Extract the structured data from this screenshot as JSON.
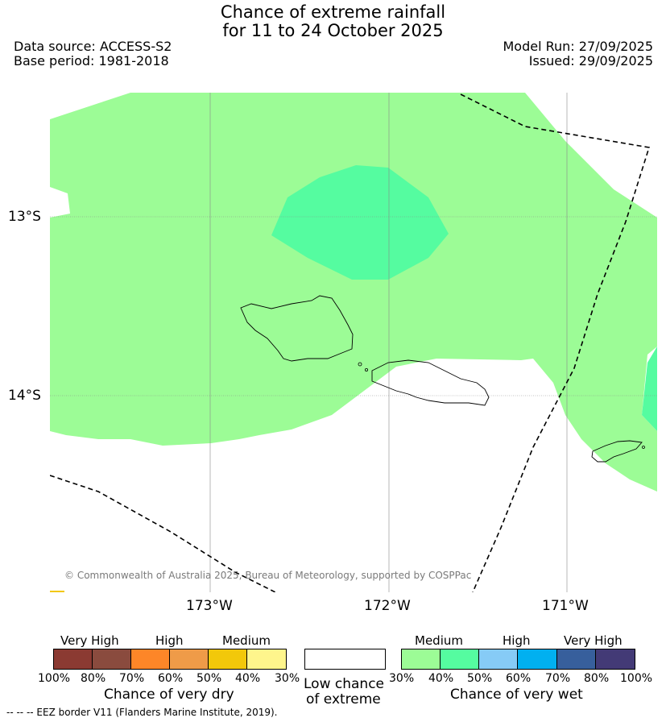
{
  "title": {
    "line1": "Chance of extreme rainfall",
    "line2": "for 11 to 24 October 2025"
  },
  "meta": {
    "data_source": "Data source: ACCESS-S2",
    "base_period": "Base period: 1981-2018",
    "model_run": "Model Run: 27/09/2025",
    "issued": "Issued: 29/09/2025"
  },
  "map": {
    "lat_labels": [
      "13°S",
      "14°S"
    ],
    "lon_labels": [
      "173°W",
      "172°W",
      "171°W"
    ],
    "credit": "© Commonwealth of Australia 2025, Bureau of Meteorology, supported by COSPPac",
    "colors": {
      "wet_medium_30": "#9cfc96",
      "wet_medium_40": "#55fca0",
      "land_outline": "#000000",
      "eez_line": "#000000"
    }
  },
  "legend": {
    "dry": {
      "headings": [
        "Very High",
        "High",
        "Medium"
      ],
      "colors": [
        "#8b3a32",
        "#8a4b3e",
        "#fd8628",
        "#ef9b48",
        "#f2c80a",
        "#fef58c"
      ],
      "ticks": [
        "100%",
        "80%",
        "70%",
        "60%",
        "50%",
        "40%",
        "30%"
      ],
      "title": "Chance of very dry"
    },
    "low": {
      "color": "#ffffff",
      "title_line1": "Low chance",
      "title_line2": "of extreme"
    },
    "wet": {
      "headings": [
        "Medium",
        "High",
        "Very High"
      ],
      "colors": [
        "#9cfc96",
        "#55fca0",
        "#86cbf6",
        "#01b0f0",
        "#375f9c",
        "#433a76"
      ],
      "ticks": [
        "30%",
        "40%",
        "50%",
        "60%",
        "70%",
        "80%",
        "100%"
      ],
      "title": "Chance of very wet"
    }
  },
  "footnote": "--  --  -- EEZ border V11 (Flanders Marine Institute, 2019)."
}
